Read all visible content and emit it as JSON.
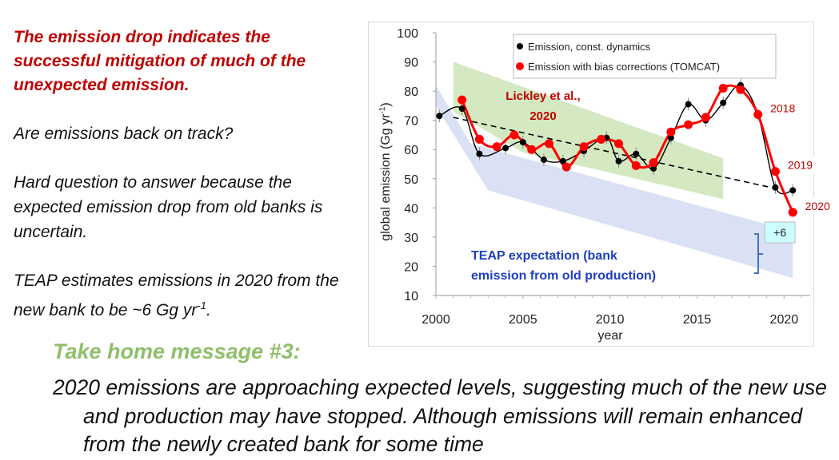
{
  "left_panel": {
    "lead": "The emission drop indicates the successful mitigation of much of the unexpected emission.",
    "question": "Are emissions back on track?",
    "answer": "Hard question to answer because the expected emission drop from old banks is uncertain.",
    "teap_text": "TEAP estimates emissions in 2020 from the new bank to be ~6 Gg yr",
    "teap_sup": "-1",
    "teap_end": "."
  },
  "takehome": {
    "title": "Take home message #3:",
    "message": "2020 emissions are approaching expected levels, suggesting much of the new use and production may have stopped.  Although emissions will remain enhanced from the newly created bank for some time"
  },
  "colors": {
    "lead": "#c00000",
    "takehome_title": "#8fbf6a",
    "teap": "#1f3fbf",
    "red_series": "#ff0000",
    "green_band": "#c9e3b1",
    "blue_band": "#d3dcf2",
    "bracket": "#4472c4",
    "plus6_box": "#ccffff"
  },
  "chart_data": {
    "type": "line",
    "ylabel": "global emission (Gg yr",
    "ylabel_sup": "-1",
    "ylabel_end": ")",
    "xlabel": "year",
    "xlim": [
      2000,
      2021.5
    ],
    "ylim": [
      10,
      100
    ],
    "xticks": [
      2000,
      2005,
      2010,
      2015,
      2020
    ],
    "yticks": [
      10,
      20,
      30,
      40,
      50,
      60,
      70,
      80,
      90,
      100
    ],
    "legend": [
      "Emission, const. dynamics",
      "Emission with bias corrections (TOMCAT)"
    ],
    "series": [
      {
        "name": "Emission, const. dynamics",
        "color": "#000000",
        "x": [
          2000.2,
          2001.5,
          2002.5,
          2004.0,
          2005.0,
          2006.2,
          2007.3,
          2008.5,
          2009.8,
          2010.5,
          2011.5,
          2012.5,
          2013.5,
          2014.5,
          2015.5,
          2016.5,
          2017.5,
          2018.5,
          2019.5,
          2020.5
        ],
        "y": [
          71.5,
          74,
          58.5,
          60.5,
          62.5,
          56.5,
          56,
          59.5,
          64,
          56,
          58.5,
          53.5,
          64,
          75.5,
          70,
          76,
          82,
          72,
          47,
          46
        ]
      },
      {
        "name": "Emission with bias corrections (TOMCAT)",
        "color": "#ff0000",
        "x": [
          2001.5,
          2002.5,
          2003.5,
          2004.5,
          2005.5,
          2006.5,
          2007.5,
          2008.5,
          2009.5,
          2010.5,
          2011.5,
          2012.5,
          2013.5,
          2014.5,
          2015.5,
          2016.5,
          2017.5,
          2018.5,
          2019.5,
          2020.5
        ],
        "y": [
          77,
          63.5,
          61,
          65,
          60,
          62,
          54,
          61,
          63.5,
          62,
          54.5,
          55.5,
          66,
          68.5,
          71,
          81,
          80.5,
          72,
          52.5,
          38.5
        ]
      }
    ],
    "trend_line": {
      "x": [
        2001,
        2020
      ],
      "y": [
        71,
        46
      ]
    },
    "green_band": {
      "label_line1": "Lickley et al.,",
      "label_line2": "2020",
      "upper": [
        [
          2001,
          90
        ],
        [
          2016.5,
          57
        ]
      ],
      "lower": [
        [
          2001,
          73
        ],
        [
          2005,
          59
        ],
        [
          2016.5,
          43
        ]
      ]
    },
    "blue_band": {
      "label_line1": "TEAP expectation (bank",
      "label_line2": "emission from old production)",
      "upper": [
        [
          2000,
          82
        ],
        [
          2002,
          62
        ],
        [
          2020.5,
          32
        ]
      ],
      "lower": [
        [
          2000,
          75
        ],
        [
          2003,
          46
        ],
        [
          2020.5,
          16
        ]
      ]
    },
    "annotations": [
      {
        "text": "2018",
        "x": 2018.5,
        "y": 72
      },
      {
        "text": "2019",
        "x": 2019.5,
        "y": 52.5
      },
      {
        "text": "2020",
        "x": 2020.5,
        "y": 38.5
      }
    ],
    "bracket_label": "+6"
  }
}
